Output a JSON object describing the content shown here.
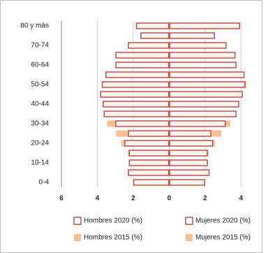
{
  "chart_data": {
    "type": "pyramid",
    "categories": [
      "0-4",
      null,
      "10-14",
      null,
      "20-24",
      null,
      "30-34",
      null,
      "40-44",
      null,
      "50-54",
      null,
      "60-64",
      null,
      "70-74",
      null,
      "80 y más"
    ],
    "series": [
      {
        "name": "Hombres 2015 (%)",
        "color": "#fac090",
        "style": "solid",
        "values": [
          -2.0,
          -2.2,
          -2.2,
          -2.3,
          -2.65,
          -2.95,
          -3.45,
          -3.6,
          -3.7,
          -3.8,
          -3.7,
          -3.4,
          -2.9,
          -2.8,
          -2.2,
          -1.6,
          -1.7
        ]
      },
      {
        "name": "Mujeres 2015 (%)",
        "color": "#fac090",
        "style": "solid",
        "values": [
          1.9,
          2.1,
          2.1,
          2.2,
          2.55,
          2.9,
          3.4,
          3.7,
          3.85,
          4.05,
          4.3,
          4.0,
          3.6,
          3.5,
          3.1,
          2.5,
          3.8
        ]
      },
      {
        "name": "Hombres 2020 (%)",
        "color": "#c0504d",
        "style": "outline",
        "values": [
          -2.0,
          -2.3,
          -2.25,
          -2.25,
          -2.5,
          -2.3,
          -3.0,
          -3.65,
          -3.7,
          -3.85,
          -3.75,
          -3.55,
          -3.0,
          -3.0,
          -2.3,
          -1.6,
          -1.85
        ]
      },
      {
        "name": "Mujeres 2020 (%)",
        "color": "#c0504d",
        "style": "outline",
        "values": [
          2.0,
          2.25,
          2.15,
          2.15,
          2.45,
          2.35,
          3.15,
          3.75,
          3.9,
          4.1,
          4.25,
          4.2,
          3.75,
          3.7,
          3.2,
          2.55,
          3.95
        ]
      }
    ],
    "xlim": [
      -6,
      5
    ],
    "xticks": [
      {
        "value": -6,
        "label": "6"
      },
      {
        "value": -4,
        "label": "4"
      },
      {
        "value": -2,
        "label": "2"
      },
      0,
      2,
      4
    ],
    "grid": true,
    "legend": "bottom"
  }
}
